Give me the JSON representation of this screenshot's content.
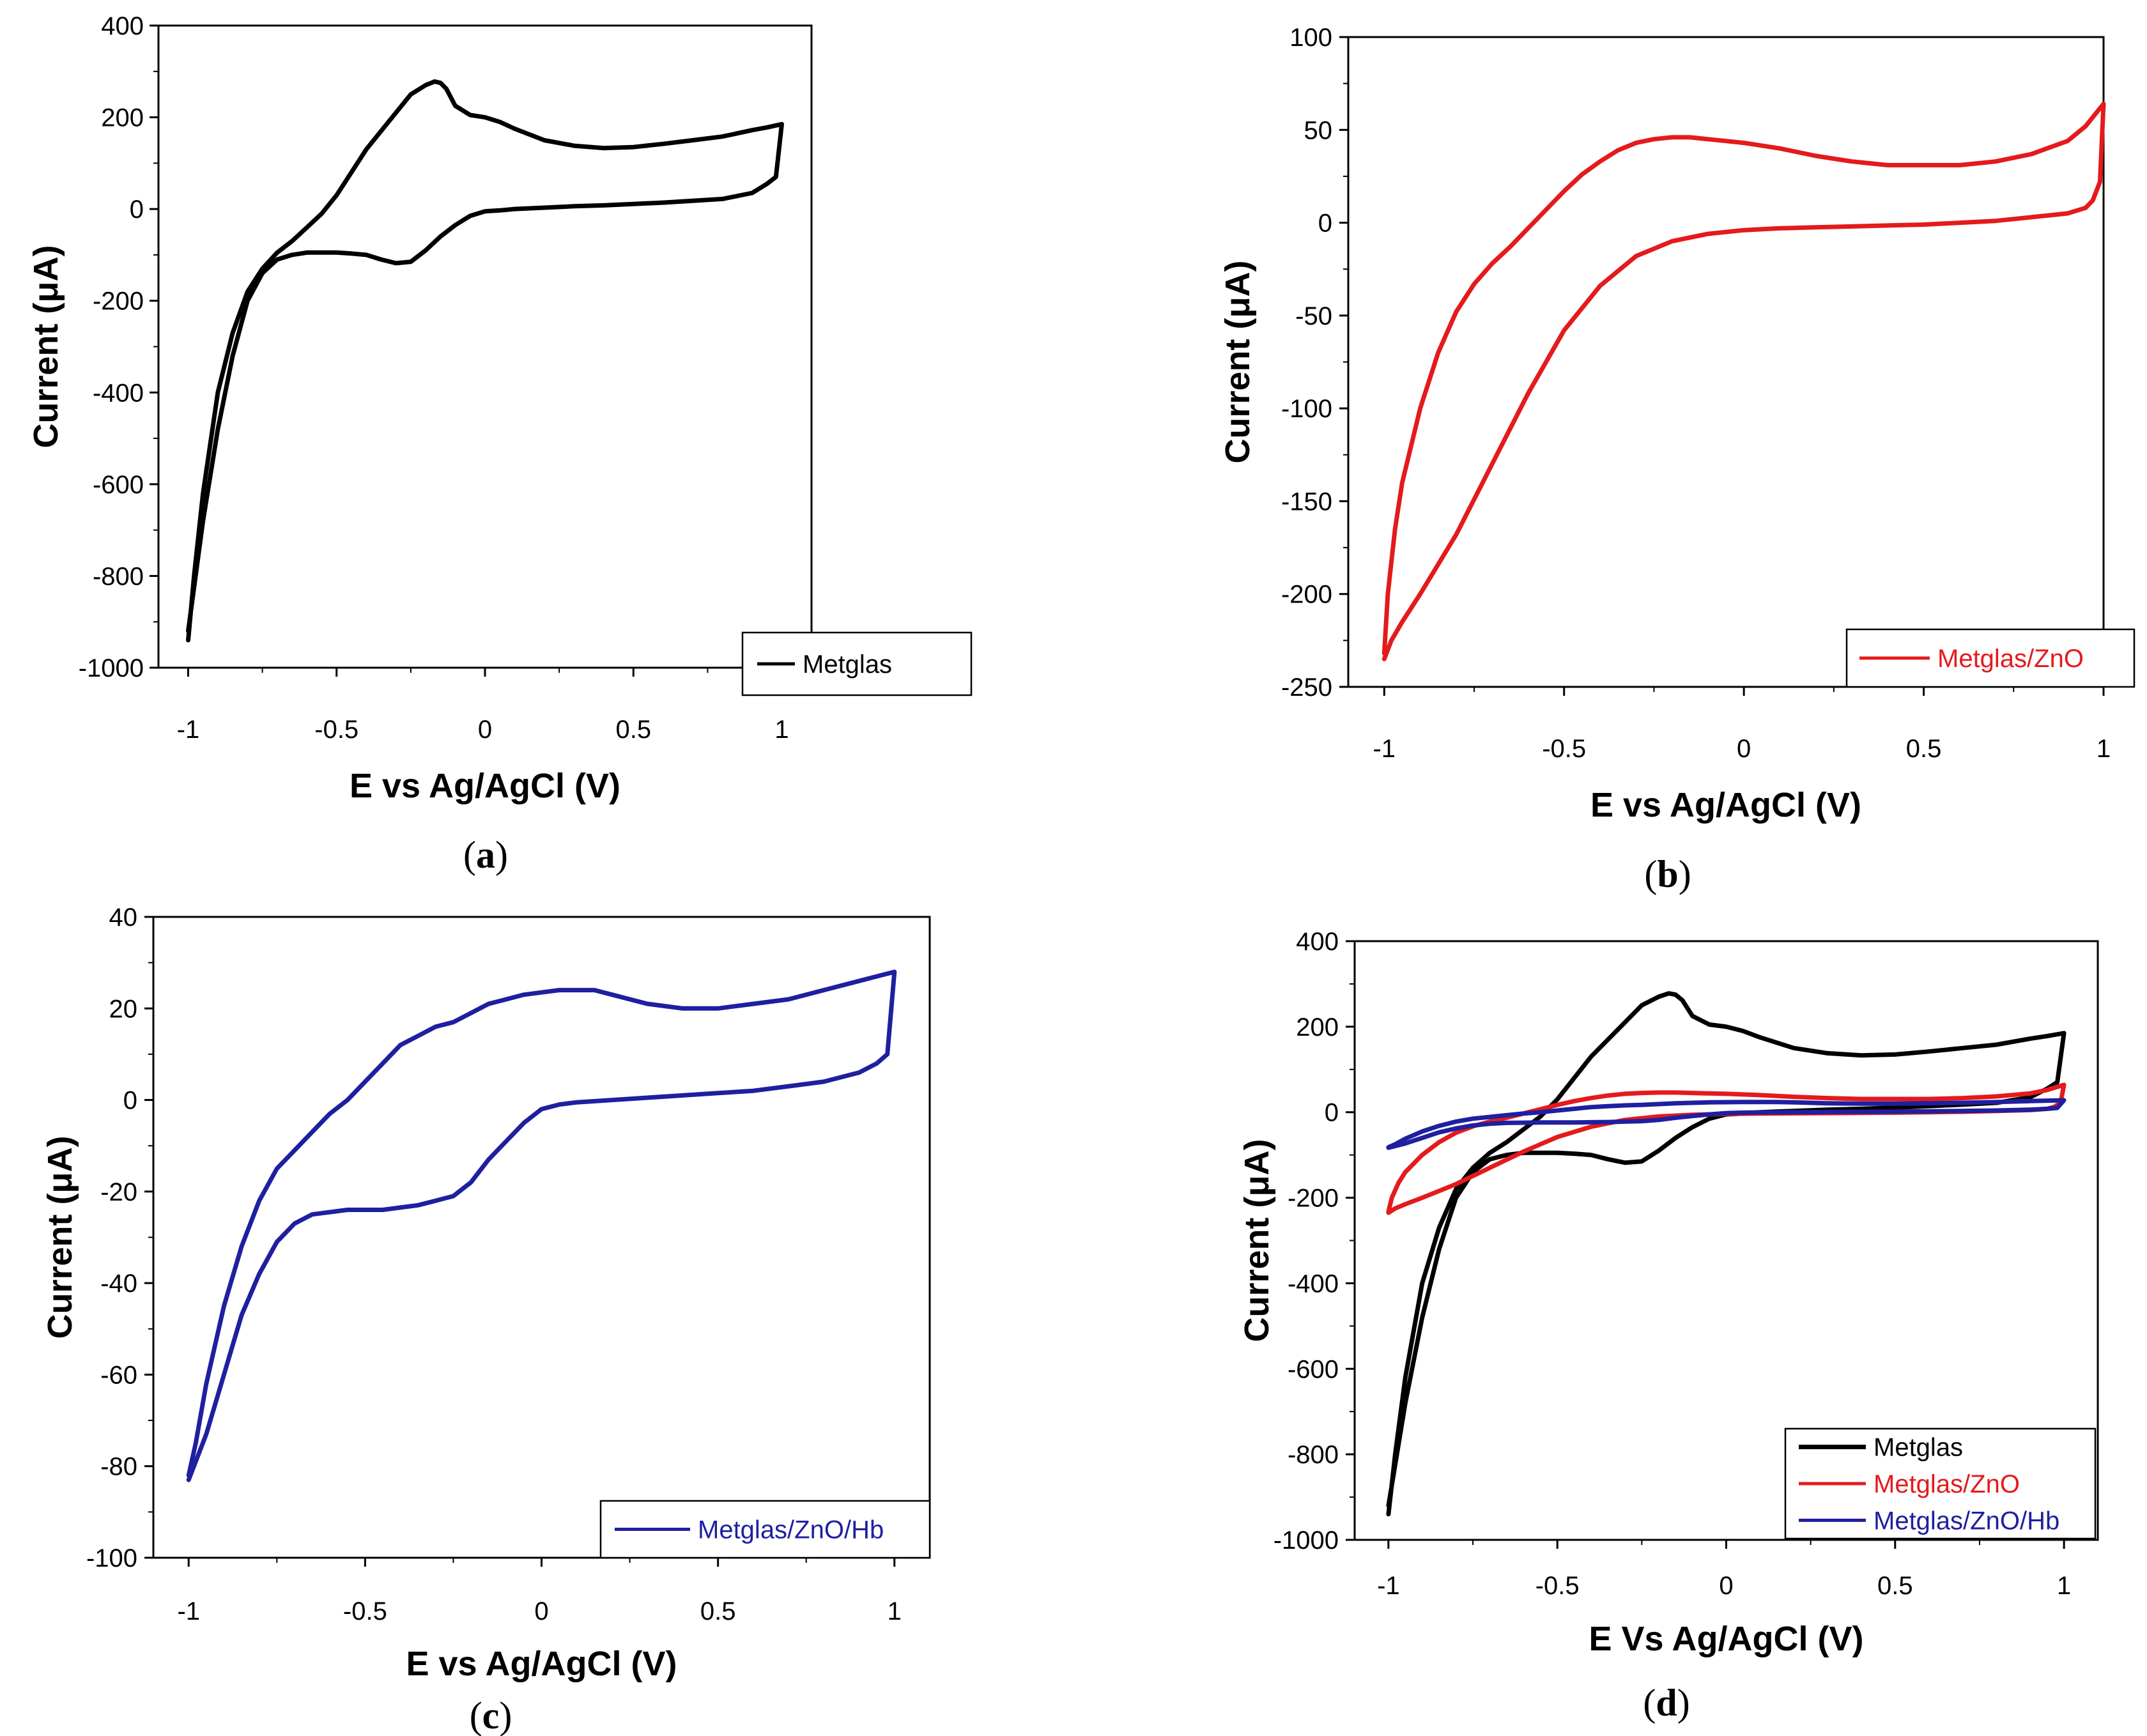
{
  "colors": {
    "metglas": "#000000",
    "zno": "#e41a1c",
    "hb": "#1f1fa0",
    "axis": "#000000"
  },
  "chart_data": [
    {
      "type": "line",
      "panel": "a",
      "caption": {
        "open": "(",
        "letter": "a",
        "close": ")"
      },
      "xlabel": "E vs Ag/AgCl (V)",
      "ylabel": "Current (μA)",
      "xlim": [
        -1.1,
        1.1
      ],
      "ylim": [
        -1000,
        400
      ],
      "xticks": [
        -1,
        -0.5,
        0,
        0.5,
        1
      ],
      "xtick_labels": [
        "-1",
        "-0.5",
        "0",
        "0.5",
        "1"
      ],
      "yticks": [
        -1000,
        -800,
        -600,
        -400,
        -200,
        0,
        200,
        400
      ],
      "ytick_labels": [
        "-1000",
        "-800",
        "-600",
        "-400",
        "-200",
        "0",
        "200",
        "400"
      ],
      "legend_position": "bottom-right",
      "series": [
        {
          "name": "Metglas",
          "color_key": "metglas",
          "x": [
            -1.0,
            -0.98,
            -0.95,
            -0.9,
            -0.85,
            -0.8,
            -0.75,
            -0.7,
            -0.65,
            -0.6,
            -0.55,
            -0.5,
            -0.45,
            -0.4,
            -0.35,
            -0.3,
            -0.25,
            -0.2,
            -0.17,
            -0.15,
            -0.13,
            -0.1,
            -0.05,
            0.0,
            0.05,
            0.1,
            0.2,
            0.3,
            0.4,
            0.5,
            0.6,
            0.7,
            0.8,
            0.9,
            0.95,
            1.0,
            0.98,
            0.95,
            0.9,
            0.8,
            0.7,
            0.6,
            0.5,
            0.4,
            0.3,
            0.2,
            0.1,
            0.05,
            0.0,
            -0.05,
            -0.1,
            -0.15,
            -0.2,
            -0.25,
            -0.3,
            -0.35,
            -0.4,
            -0.45,
            -0.5,
            -0.55,
            -0.6,
            -0.65,
            -0.7,
            -0.75,
            -0.8,
            -0.85,
            -0.9,
            -0.95,
            -1.0
          ],
          "y": [
            -940,
            -800,
            -620,
            -400,
            -270,
            -180,
            -130,
            -95,
            -70,
            -40,
            -10,
            30,
            80,
            130,
            170,
            210,
            250,
            270,
            278,
            275,
            262,
            225,
            205,
            200,
            190,
            175,
            150,
            138,
            133,
            135,
            142,
            150,
            158,
            172,
            178,
            185,
            70,
            55,
            35,
            22,
            18,
            14,
            11,
            8,
            6,
            3,
            0,
            -3,
            -5,
            -15,
            -35,
            -60,
            -90,
            -115,
            -118,
            -110,
            -100,
            -97,
            -95,
            -95,
            -95,
            -100,
            -110,
            -140,
            -200,
            -320,
            -480,
            -680,
            -920
          ]
        }
      ]
    },
    {
      "type": "line",
      "panel": "b",
      "caption": {
        "open": "(",
        "letter": "b",
        "close": ")"
      },
      "xlabel": "E vs Ag/AgCl (V)",
      "ylabel": "Current (μA)",
      "xlim": [
        -1.1,
        1.0
      ],
      "ylim": [
        -250,
        100
      ],
      "xticks": [
        -1,
        -0.5,
        0,
        0.5,
        1
      ],
      "xtick_labels": [
        "-1",
        "-0.5",
        "0",
        "0.5",
        "1"
      ],
      "yticks": [
        -250,
        -200,
        -150,
        -100,
        -50,
        0,
        50,
        100
      ],
      "ytick_labels": [
        "-250",
        "-200",
        "-150",
        "-100",
        "-50",
        "0",
        "50",
        "100"
      ],
      "legend_position": "bottom-right",
      "series": [
        {
          "name": "Metglas/ZnO",
          "color_key": "zno",
          "x": [
            -1.0,
            -0.99,
            -0.97,
            -0.95,
            -0.9,
            -0.85,
            -0.8,
            -0.75,
            -0.7,
            -0.65,
            -0.6,
            -0.55,
            -0.5,
            -0.45,
            -0.4,
            -0.35,
            -0.3,
            -0.25,
            -0.2,
            -0.15,
            -0.1,
            -0.05,
            0.0,
            0.1,
            0.2,
            0.3,
            0.4,
            0.5,
            0.6,
            0.7,
            0.8,
            0.9,
            0.95,
            1.0,
            0.99,
            0.97,
            0.95,
            0.9,
            0.8,
            0.7,
            0.6,
            0.5,
            0.4,
            0.3,
            0.2,
            0.1,
            0.0,
            -0.1,
            -0.2,
            -0.3,
            -0.4,
            -0.5,
            -0.6,
            -0.7,
            -0.8,
            -0.9,
            -0.95,
            -0.98,
            -1.0
          ],
          "y": [
            -232,
            -200,
            -165,
            -140,
            -100,
            -70,
            -48,
            -33,
            -22,
            -13,
            -3,
            7,
            17,
            26,
            33,
            39,
            43,
            45,
            46,
            46,
            45,
            44,
            43,
            40,
            36,
            33,
            31,
            31,
            31,
            33,
            37,
            44,
            52,
            64,
            22,
            12,
            8,
            5,
            3,
            1,
            0,
            -1,
            -1.5,
            -2,
            -2.5,
            -3,
            -4,
            -6,
            -10,
            -18,
            -34,
            -58,
            -92,
            -130,
            -168,
            -200,
            -215,
            -225,
            -235
          ]
        }
      ]
    },
    {
      "type": "line",
      "panel": "c",
      "caption": {
        "open": "(",
        "letter": "c",
        "close": ")"
      },
      "xlabel": "E vs Ag/AgCl (V)",
      "ylabel": "Current (μA)",
      "xlim": [
        -1.1,
        1.1
      ],
      "ylim": [
        -100,
        40
      ],
      "xticks": [
        -1,
        -0.5,
        0,
        0.5,
        1
      ],
      "xtick_labels": [
        "-1",
        "-0.5",
        "0",
        "0.5",
        "1"
      ],
      "yticks": [
        -100,
        -80,
        -60,
        -40,
        -20,
        0,
        20,
        40
      ],
      "ytick_labels": [
        "-100",
        "-80",
        "-60",
        "-40",
        "-20",
        "0",
        "20",
        "40"
      ],
      "legend_position": "bottom-right",
      "series": [
        {
          "name": "Metglas/ZnO/Hb",
          "color_key": "hb",
          "x": [
            -1.0,
            -0.98,
            -0.95,
            -0.9,
            -0.85,
            -0.8,
            -0.75,
            -0.7,
            -0.65,
            -0.6,
            -0.55,
            -0.5,
            -0.45,
            -0.4,
            -0.35,
            -0.3,
            -0.25,
            -0.2,
            -0.15,
            -0.1,
            -0.05,
            0.0,
            0.05,
            0.1,
            0.15,
            0.2,
            0.3,
            0.4,
            0.5,
            0.6,
            0.7,
            0.8,
            0.9,
            0.95,
            1.0,
            0.98,
            0.95,
            0.9,
            0.8,
            0.7,
            0.6,
            0.5,
            0.4,
            0.3,
            0.2,
            0.1,
            0.05,
            0.0,
            -0.05,
            -0.1,
            -0.15,
            -0.2,
            -0.25,
            -0.3,
            -0.35,
            -0.4,
            -0.45,
            -0.5,
            -0.55,
            -0.6,
            -0.65,
            -0.7,
            -0.75,
            -0.8,
            -0.85,
            -0.9,
            -0.95,
            -1.0
          ],
          "y": [
            -82,
            -75,
            -62,
            -45,
            -32,
            -22,
            -15,
            -11,
            -7,
            -3,
            0,
            4,
            8,
            12,
            14,
            16,
            17,
            19,
            21,
            22,
            23,
            23.5,
            24,
            24,
            24,
            23,
            21,
            20,
            20,
            21,
            22,
            24,
            26,
            27,
            28,
            10,
            8,
            6,
            4,
            3,
            2,
            1.5,
            1,
            0.5,
            0,
            -0.5,
            -1,
            -2,
            -5,
            -9,
            -13,
            -18,
            -21,
            -22,
            -23,
            -23.5,
            -24,
            -24,
            -24,
            -24.5,
            -25,
            -27,
            -31,
            -38,
            -47,
            -60,
            -73,
            -83
          ]
        }
      ]
    },
    {
      "type": "line",
      "panel": "d",
      "caption": {
        "open": "(",
        "letter": "d",
        "close": ")"
      },
      "xlabel": "E Vs Ag/AgCl (V)",
      "ylabel": "Current (μA)",
      "xlim": [
        -1.1,
        1.1
      ],
      "ylim": [
        -1000,
        400
      ],
      "xticks": [
        -1,
        -0.5,
        0,
        0.5,
        1
      ],
      "xtick_labels": [
        "-1",
        "-0.5",
        "0",
        "0.5",
        "1"
      ],
      "yticks": [
        -1000,
        -800,
        -600,
        -400,
        -200,
        0,
        200,
        400
      ],
      "ytick_labels": [
        "-1000",
        "-800",
        "-600",
        "-400",
        "-200",
        "0",
        "200",
        "400"
      ],
      "legend_position": "bottom-right",
      "series": [
        {
          "name": "Metglas",
          "color_key": "metglas",
          "x": [
            -1.0,
            -0.98,
            -0.95,
            -0.9,
            -0.85,
            -0.8,
            -0.75,
            -0.7,
            -0.65,
            -0.6,
            -0.55,
            -0.5,
            -0.45,
            -0.4,
            -0.35,
            -0.3,
            -0.25,
            -0.2,
            -0.17,
            -0.15,
            -0.13,
            -0.1,
            -0.05,
            0.0,
            0.05,
            0.1,
            0.2,
            0.3,
            0.4,
            0.5,
            0.6,
            0.7,
            0.8,
            0.9,
            0.95,
            1.0,
            0.98,
            0.95,
            0.9,
            0.8,
            0.7,
            0.6,
            0.5,
            0.4,
            0.3,
            0.2,
            0.1,
            0.05,
            0.0,
            -0.05,
            -0.1,
            -0.15,
            -0.2,
            -0.25,
            -0.3,
            -0.35,
            -0.4,
            -0.45,
            -0.5,
            -0.55,
            -0.6,
            -0.65,
            -0.7,
            -0.75,
            -0.8,
            -0.85,
            -0.9,
            -0.95,
            -1.0
          ],
          "y": [
            -940,
            -800,
            -620,
            -400,
            -270,
            -180,
            -130,
            -95,
            -70,
            -40,
            -10,
            30,
            80,
            130,
            170,
            210,
            250,
            270,
            278,
            275,
            262,
            225,
            205,
            200,
            190,
            175,
            150,
            138,
            133,
            135,
            142,
            150,
            158,
            172,
            178,
            185,
            70,
            55,
            35,
            22,
            18,
            14,
            11,
            8,
            6,
            3,
            0,
            -3,
            -5,
            -15,
            -35,
            -60,
            -90,
            -115,
            -118,
            -110,
            -100,
            -97,
            -95,
            -95,
            -95,
            -100,
            -110,
            -140,
            -200,
            -320,
            -480,
            -680,
            -920
          ]
        },
        {
          "name": "Metglas/ZnO",
          "color_key": "zno",
          "x": [
            -1.0,
            -0.99,
            -0.97,
            -0.95,
            -0.9,
            -0.85,
            -0.8,
            -0.75,
            -0.7,
            -0.65,
            -0.6,
            -0.55,
            -0.5,
            -0.45,
            -0.4,
            -0.35,
            -0.3,
            -0.25,
            -0.2,
            -0.15,
            -0.1,
            -0.05,
            0.0,
            0.1,
            0.2,
            0.3,
            0.4,
            0.5,
            0.6,
            0.7,
            0.8,
            0.9,
            0.95,
            1.0,
            0.99,
            0.97,
            0.95,
            0.9,
            0.8,
            0.7,
            0.6,
            0.5,
            0.4,
            0.3,
            0.2,
            0.1,
            0.0,
            -0.1,
            -0.2,
            -0.3,
            -0.4,
            -0.5,
            -0.6,
            -0.7,
            -0.8,
            -0.9,
            -0.95,
            -0.98,
            -1.0
          ],
          "y": [
            -232,
            -200,
            -165,
            -140,
            -100,
            -70,
            -48,
            -33,
            -22,
            -13,
            -3,
            7,
            17,
            26,
            33,
            39,
            43,
            45,
            46,
            46,
            45,
            44,
            43,
            40,
            36,
            33,
            31,
            31,
            31,
            33,
            37,
            44,
            52,
            64,
            22,
            12,
            8,
            5,
            3,
            1,
            0,
            -1,
            -1.5,
            -2,
            -2.5,
            -3,
            -4,
            -6,
            -10,
            -18,
            -34,
            -58,
            -92,
            -130,
            -168,
            -200,
            -215,
            -225,
            -235
          ]
        },
        {
          "name": "Metglas/ZnO/Hb",
          "color_key": "hb",
          "x": [
            -1.0,
            -0.98,
            -0.95,
            -0.9,
            -0.85,
            -0.8,
            -0.75,
            -0.7,
            -0.65,
            -0.6,
            -0.55,
            -0.5,
            -0.45,
            -0.4,
            -0.35,
            -0.3,
            -0.25,
            -0.2,
            -0.15,
            -0.1,
            -0.05,
            0.0,
            0.05,
            0.1,
            0.15,
            0.2,
            0.3,
            0.4,
            0.5,
            0.6,
            0.7,
            0.8,
            0.9,
            0.95,
            1.0,
            0.98,
            0.95,
            0.9,
            0.8,
            0.7,
            0.6,
            0.5,
            0.4,
            0.3,
            0.2,
            0.1,
            0.05,
            0.0,
            -0.05,
            -0.1,
            -0.15,
            -0.2,
            -0.25,
            -0.3,
            -0.35,
            -0.4,
            -0.45,
            -0.5,
            -0.55,
            -0.6,
            -0.65,
            -0.7,
            -0.75,
            -0.8,
            -0.85,
            -0.9,
            -0.95,
            -1.0
          ],
          "y": [
            -82,
            -75,
            -62,
            -45,
            -32,
            -22,
            -15,
            -11,
            -7,
            -3,
            0,
            4,
            8,
            12,
            14,
            16,
            17,
            19,
            21,
            22,
            23,
            23.5,
            24,
            24,
            24,
            23,
            21,
            20,
            20,
            21,
            22,
            24,
            26,
            27,
            28,
            10,
            8,
            6,
            4,
            3,
            2,
            1.5,
            1,
            0.5,
            0,
            -0.5,
            -1,
            -2,
            -5,
            -9,
            -13,
            -18,
            -21,
            -22,
            -23,
            -23.5,
            -24,
            -24,
            -24,
            -24.5,
            -25,
            -27,
            -31,
            -38,
            -47,
            -60,
            -73,
            -83
          ]
        }
      ]
    }
  ]
}
